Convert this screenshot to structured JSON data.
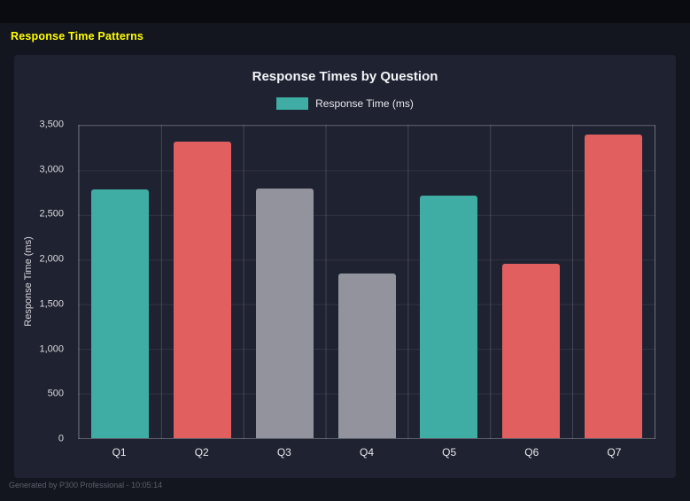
{
  "page": {
    "title": "Response Time Patterns",
    "footer": "Generated by P300 Professional - 10:05:14"
  },
  "chart_data": {
    "type": "bar",
    "title": "Response Times by Question",
    "legend": [
      {
        "label": "Response Time (ms)",
        "color": "#3fada4"
      }
    ],
    "legend_position": "top",
    "categories": [
      "Q1",
      "Q2",
      "Q3",
      "Q4",
      "Q5",
      "Q6",
      "Q7"
    ],
    "values": [
      2790,
      3320,
      2800,
      1840,
      2720,
      1950,
      3400
    ],
    "bar_colors": [
      "#3fada4",
      "#e25f5f",
      "#92939c",
      "#92939c",
      "#3fada4",
      "#e25f5f",
      "#e25f5f"
    ],
    "xlabel": "",
    "ylabel": "Response Time (ms)",
    "ylim": [
      0,
      3500
    ],
    "ytick_step": 500,
    "yticks": [
      "0",
      "500",
      "1,000",
      "1,500",
      "2,000",
      "2,500",
      "3,000",
      "3,500"
    ],
    "grid": true
  },
  "colors": {
    "page_title": "#ffff00",
    "teal": "#3fada4",
    "red": "#e25f5f",
    "gray": "#92939c",
    "panel_bg": "#1f2231",
    "page_bg": "#14161f"
  }
}
